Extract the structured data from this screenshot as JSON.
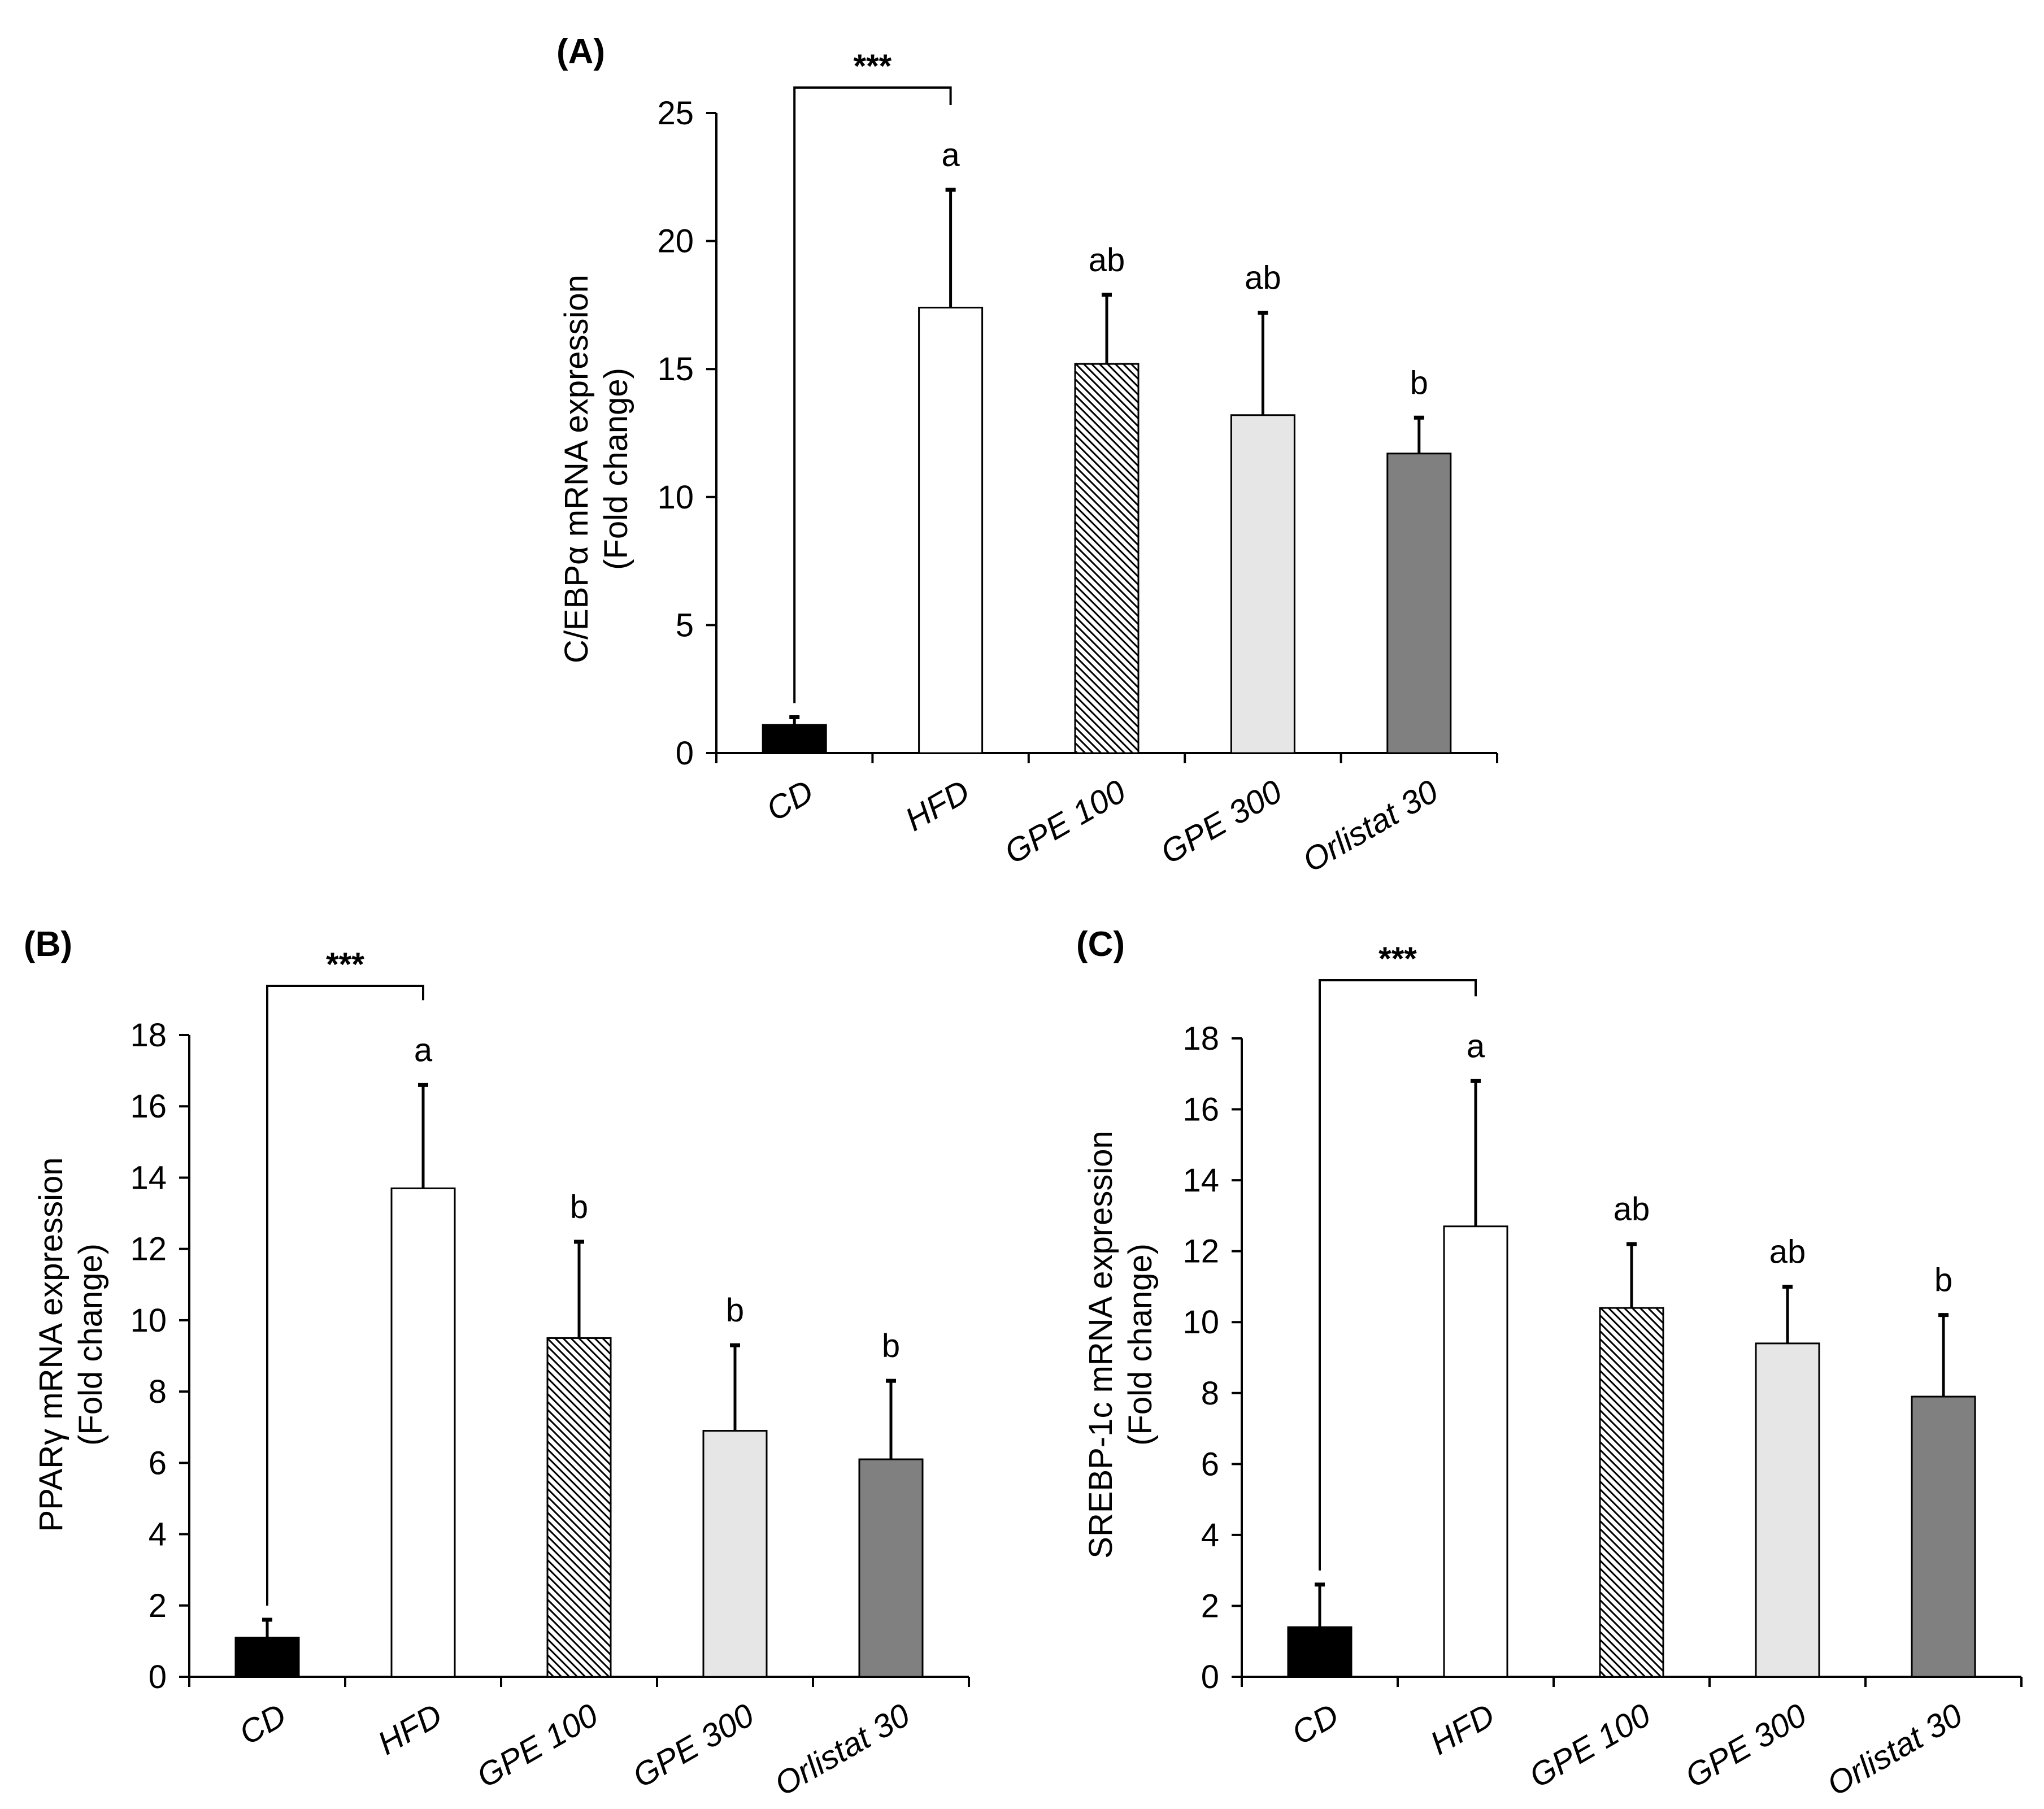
{
  "chart_data": [
    {
      "type": "bar",
      "panel_label": "(A)",
      "categories": [
        "CD",
        "HFD",
        "GPE 100",
        "GPE 300",
        "Orlistat 30"
      ],
      "values": [
        1.1,
        17.4,
        15.2,
        13.2,
        11.7
      ],
      "errors": [
        0.3,
        4.6,
        2.7,
        4.0,
        1.4
      ],
      "letters": [
        "",
        "a",
        "ab",
        "ab",
        "b"
      ],
      "significance": {
        "from": "CD",
        "to": "HFD",
        "label": "***"
      },
      "ylabel_lines": [
        "C/EBPα mRNA expression",
        "(Fold change)"
      ],
      "ylim": [
        0,
        25
      ],
      "yticks": [
        0,
        5,
        10,
        15,
        20,
        25
      ],
      "fills": [
        "#000000",
        "#ffffff",
        "hatch",
        "#e6e6e6",
        "#808080"
      ]
    },
    {
      "type": "bar",
      "panel_label": "(B)",
      "categories": [
        "CD",
        "HFD",
        "GPE 100",
        "GPE 300",
        "Orlistat 30"
      ],
      "values": [
        1.1,
        13.7,
        9.5,
        6.9,
        6.1
      ],
      "errors": [
        0.5,
        2.9,
        2.7,
        2.4,
        2.2
      ],
      "letters": [
        "",
        "a",
        "b",
        "b",
        "b"
      ],
      "significance": {
        "from": "CD",
        "to": "HFD",
        "label": "***"
      },
      "ylabel_lines": [
        "PPARγ mRNA expression",
        "(Fold change)"
      ],
      "ylim": [
        0,
        18
      ],
      "yticks": [
        0,
        2,
        4,
        6,
        8,
        10,
        12,
        14,
        16,
        18
      ],
      "fills": [
        "#000000",
        "#ffffff",
        "hatch",
        "#e6e6e6",
        "#808080"
      ]
    },
    {
      "type": "bar",
      "panel_label": "(C)",
      "categories": [
        "CD",
        "HFD",
        "GPE 100",
        "GPE 300",
        "Orlistat 30"
      ],
      "values": [
        1.4,
        12.7,
        10.4,
        9.4,
        7.9
      ],
      "errors": [
        1.2,
        4.1,
        1.8,
        1.6,
        2.3
      ],
      "letters": [
        "",
        "a",
        "ab",
        "ab",
        "b"
      ],
      "significance": {
        "from": "CD",
        "to": "HFD",
        "label": "***"
      },
      "ylabel_lines": [
        "SREBP-1c mRNA expression",
        "(Fold change)"
      ],
      "ylim": [
        0,
        18
      ],
      "yticks": [
        0,
        2,
        4,
        6,
        8,
        10,
        12,
        14,
        16,
        18
      ],
      "fills": [
        "#000000",
        "#ffffff",
        "hatch",
        "#e6e6e6",
        "#808080"
      ]
    }
  ]
}
